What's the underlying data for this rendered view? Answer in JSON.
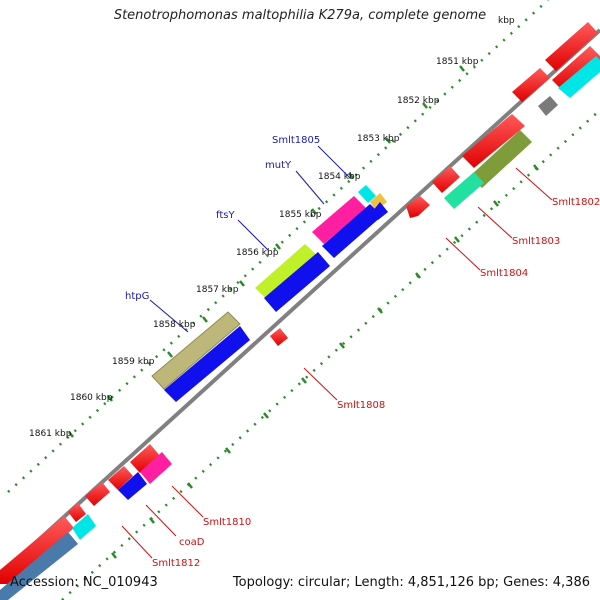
{
  "title": "Stenotrophomonas maltophilia K279a, complete genome",
  "accession": "Accession: NC_010943",
  "summary": "Topology: circular; Length: 4,851,126 bp; Genes: 4,386",
  "colors": {
    "backbone": "#7f7f7f",
    "ruler": "#2a8a2a",
    "label_upper": "#1a1aa8",
    "label_lower": "#d01010"
  },
  "ticks": [
    {
      "label": "1851 kbp"
    },
    {
      "label": "1852 kbp"
    },
    {
      "label": "1853 kbp"
    },
    {
      "label": "1854 kbp"
    },
    {
      "label": "1855 kbp"
    },
    {
      "label": "1856 kbp"
    },
    {
      "label": "1857 kbp"
    },
    {
      "label": "1858 kbp"
    },
    {
      "label": "1859 kbp"
    },
    {
      "label": "1860 kbp"
    },
    {
      "label": "1861 kbp"
    }
  ],
  "partial_tick_label": "kbp",
  "gene_labels_upper": [
    {
      "text": "Smlt1805"
    },
    {
      "text": "mutY"
    },
    {
      "text": "ftsY"
    },
    {
      "text": "htpG"
    }
  ],
  "gene_labels_lower": [
    {
      "text": "Smlt1802"
    },
    {
      "text": "Smlt1803"
    },
    {
      "text": "Smlt1804"
    },
    {
      "text": "Smlt1808"
    },
    {
      "text": "Smlt1810"
    },
    {
      "text": "coaD"
    },
    {
      "text": "Smlt1812"
    }
  ]
}
